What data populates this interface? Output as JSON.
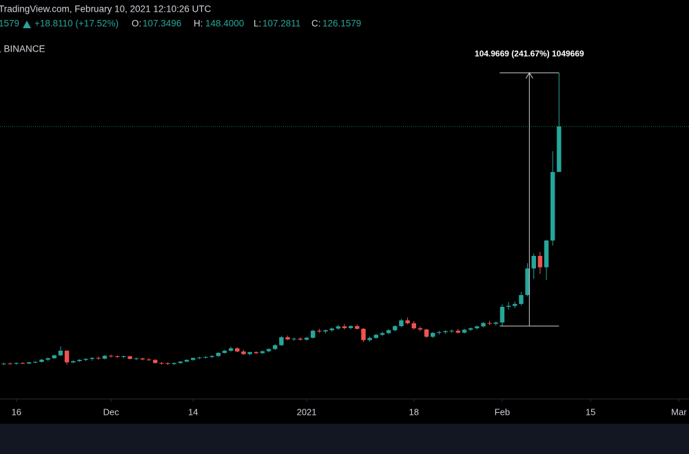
{
  "header": {
    "source": "TradingView.com, February 10, 2021 12:10:26 UTC",
    "last": "1579",
    "change": "+18.8110 (+17.52%)",
    "o_label": "O:",
    "o_value": "107.3496",
    "h_label": "H:",
    "h_value": "148.4000",
    "l_label": "L:",
    "l_value": "107.2811",
    "c_label": "C:",
    "c_value": "126.1579",
    "exchange": ", BINANCE"
  },
  "chart_data": {
    "type": "candlestick",
    "up_color": "#26a69a",
    "down_color": "#ef5350",
    "price_line": true,
    "annotation": "104.9669 (241.67%) 1049669",
    "xlim": [
      -0.6,
      108.6
    ],
    "ylim": [
      13.2,
      161.5
    ],
    "xticks": [
      {
        "value": 2,
        "label": "16"
      },
      {
        "value": 17,
        "label": "Dec"
      },
      {
        "value": 30,
        "label": "14"
      },
      {
        "value": 48,
        "label": "2021"
      },
      {
        "value": 65,
        "label": "18"
      },
      {
        "value": 79,
        "label": "Feb"
      },
      {
        "value": 93,
        "label": "15"
      },
      {
        "value": 107,
        "label": "Mar"
      }
    ],
    "open": [
      27.7,
      27.9,
      27.8,
      28.1,
      27.9,
      28.4,
      28.6,
      29.5,
      30.1,
      31.3,
      33.2,
      28.4,
      28.9,
      29.4,
      29.8,
      30.2,
      29.9,
      31.1,
      30.9,
      30.6,
      30.9,
      29.8,
      30.0,
      29.6,
      29.4,
      28.1,
      28.0,
      27.7,
      28.1,
      28.7,
      29.4,
      30.2,
      30.4,
      30.6,
      31.0,
      32.3,
      33.2,
      34.2,
      32.9,
      31.8,
      32.6,
      32.2,
      33.0,
      33.9,
      35.5,
      38.8,
      37.9,
      38.2,
      37.8,
      38.6,
      41.5,
      41.2,
      41.7,
      42.4,
      43.3,
      42.6,
      43.4,
      42.3,
      37.6,
      38.5,
      39.8,
      40.5,
      41.7,
      43.4,
      45.8,
      44.6,
      42.5,
      42.0,
      39.0,
      40.6,
      40.9,
      41.3,
      41.5,
      40.7,
      41.9,
      42.5,
      43.3,
      44.7,
      44.4,
      44.9,
      51.4,
      51.8,
      52.6,
      56.3,
      67.3,
      72.5,
      67.8,
      78.9,
      107.3496
    ],
    "high": [
      28.2,
      28.3,
      28.4,
      28.5,
      28.6,
      28.9,
      29.8,
      30.3,
      31.5,
      35.0,
      33.4,
      29.2,
      29.7,
      30.1,
      30.5,
      30.8,
      31.4,
      31.6,
      31.3,
      31.2,
      31.1,
      30.4,
      30.3,
      30.1,
      29.7,
      28.6,
      28.4,
      28.3,
      28.9,
      29.6,
      30.4,
      30.7,
      31.0,
      31.3,
      32.6,
      33.6,
      34.9,
      34.6,
      33.6,
      32.9,
      33.0,
      33.3,
      34.2,
      35.9,
      39.3,
      39.5,
      38.6,
      38.8,
      39.0,
      41.9,
      42.3,
      42.0,
      42.8,
      44.0,
      44.2,
      43.8,
      44.1,
      42.6,
      39.1,
      40.2,
      41.1,
      42.2,
      43.8,
      46.4,
      47.0,
      45.5,
      43.2,
      42.3,
      41.0,
      41.5,
      41.7,
      42.0,
      42.2,
      42.3,
      42.9,
      43.6,
      45.1,
      45.6,
      45.3,
      52.4,
      53.4,
      53.6,
      57.6,
      69.5,
      73.5,
      74.2,
      79.2,
      115.9,
      148.4
    ],
    "low": [
      27.3,
      27.5,
      27.4,
      27.6,
      27.6,
      28.0,
      28.3,
      29.0,
      29.8,
      31.0,
      27.4,
      28.0,
      28.5,
      28.9,
      29.1,
      29.5,
      29.6,
      30.4,
      30.2,
      30.1,
      29.6,
      29.3,
      29.2,
      29.0,
      27.9,
      27.5,
      27.3,
      27.2,
      27.8,
      28.4,
      29.0,
      29.7,
      30.0,
      30.1,
      30.7,
      32.0,
      32.8,
      32.6,
      31.5,
      31.3,
      31.8,
      31.9,
      32.6,
      33.5,
      35.2,
      37.6,
      37.3,
      37.4,
      37.3,
      38.2,
      40.6,
      40.4,
      41.1,
      41.9,
      42.0,
      42.1,
      42.0,
      36.8,
      37.0,
      38.1,
      39.3,
      40.1,
      41.2,
      43.0,
      44.1,
      42.0,
      41.3,
      38.6,
      38.5,
      39.9,
      40.2,
      40.6,
      40.3,
      40.3,
      41.4,
      42.1,
      42.9,
      43.8,
      43.6,
      43.4331,
      50.3,
      50.8,
      52.0,
      55.8,
      63.0,
      65.1,
      62.5,
      76.8,
      107.2811
    ],
    "close": [
      27.9,
      27.8,
      28.1,
      27.9,
      28.4,
      28.6,
      29.5,
      30.1,
      31.3,
      33.2,
      28.4,
      28.9,
      29.4,
      29.8,
      30.2,
      29.9,
      31.1,
      30.9,
      30.6,
      30.9,
      29.8,
      30.0,
      29.6,
      29.4,
      28.1,
      28.0,
      27.7,
      28.1,
      28.7,
      29.4,
      30.2,
      30.4,
      30.6,
      31.0,
      32.3,
      33.2,
      34.2,
      32.9,
      31.8,
      32.6,
      32.2,
      33.0,
      33.9,
      35.5,
      38.8,
      37.9,
      38.2,
      37.8,
      38.6,
      41.5,
      41.2,
      41.7,
      42.4,
      43.3,
      42.6,
      43.4,
      42.3,
      37.6,
      38.5,
      39.8,
      40.5,
      41.7,
      43.4,
      45.8,
      44.6,
      42.5,
      42.0,
      39.0,
      40.6,
      40.9,
      41.3,
      41.5,
      40.7,
      41.9,
      42.5,
      43.3,
      44.7,
      44.4,
      44.9,
      51.4,
      51.8,
      52.6,
      56.3,
      67.3,
      72.5,
      67.8,
      78.9,
      107.3,
      126.1579
    ]
  }
}
